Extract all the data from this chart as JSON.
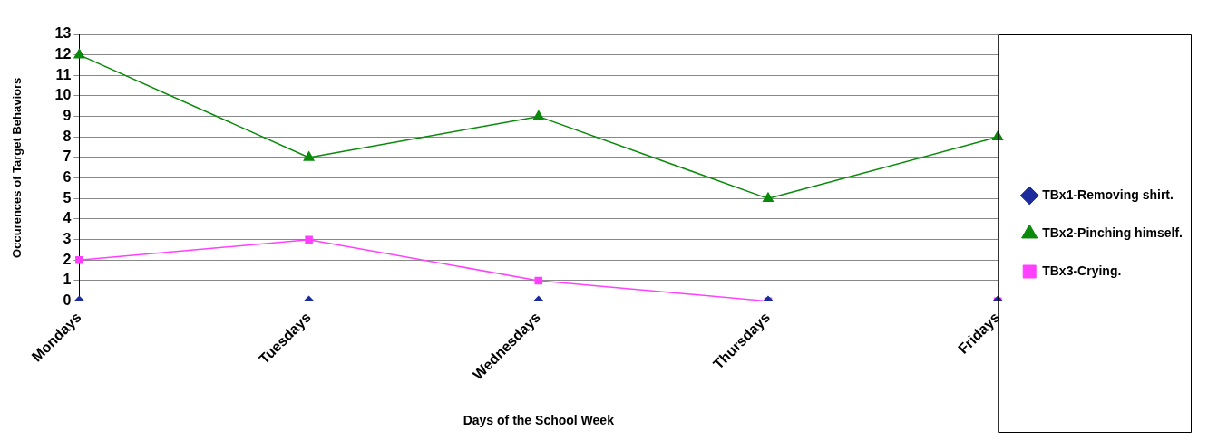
{
  "chart_data": {
    "type": "line",
    "xlabel": "Days of the School Week",
    "ylabel": "Occurences of Target Behaviors",
    "categories": [
      "Mondays",
      "Tuesdays",
      "Wednesdays",
      "Thursdays",
      "Fridays"
    ],
    "series": [
      {
        "name": "TBx1-Removing shirt.",
        "color": "#1c2c9c",
        "marker": "diamond",
        "values": [
          0,
          0,
          0,
          0,
          0
        ]
      },
      {
        "name": "TBx2-Pinching himself.",
        "color": "#0a8a0a",
        "marker": "triangle",
        "values": [
          12,
          7,
          9,
          5,
          8
        ]
      },
      {
        "name": "TBx3-Crying.",
        "color": "#ff40ff",
        "marker": "square",
        "values": [
          2,
          3,
          1,
          0,
          0
        ]
      }
    ],
    "ylim": [
      0,
      13
    ],
    "yticks": [
      0,
      1,
      2,
      3,
      4,
      5,
      6,
      7,
      8,
      9,
      10,
      11,
      12,
      13
    ],
    "grid": "y",
    "legend": "right"
  }
}
